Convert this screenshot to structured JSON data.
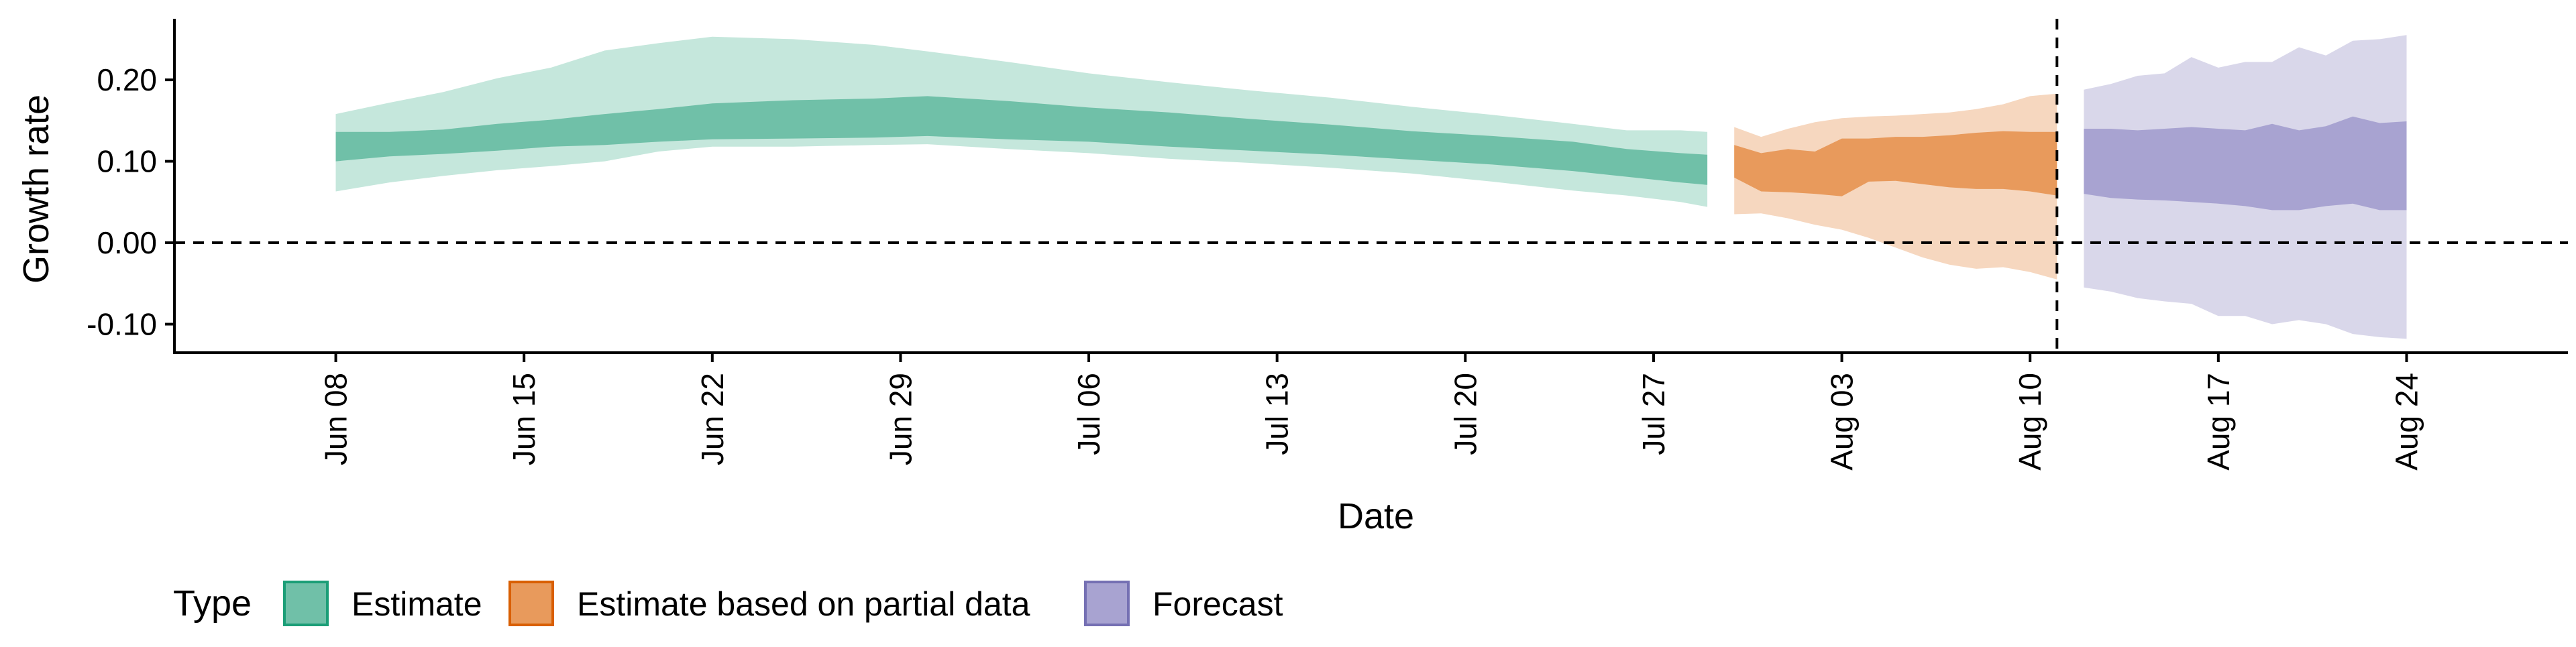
{
  "chart_data": {
    "type": "area",
    "xlabel": "Date",
    "ylabel": "Growth rate",
    "ylim": [
      -0.135,
      0.275
    ],
    "y_ticks": [
      -0.1,
      0.0,
      0.1,
      0.2
    ],
    "y_tick_labels": [
      "-0.10",
      "0.00",
      "0.10",
      "0.20"
    ],
    "x_range": [
      "2020-06-02",
      "2020-08-30"
    ],
    "x_ticks": [
      "2020-06-08",
      "2020-06-15",
      "2020-06-22",
      "2020-06-29",
      "2020-07-06",
      "2020-07-13",
      "2020-07-20",
      "2020-07-27",
      "2020-08-03",
      "2020-08-10",
      "2020-08-17",
      "2020-08-24"
    ],
    "x_tick_labels": [
      "Jun 08",
      "Jun 15",
      "Jun 22",
      "Jun 29",
      "Jul 06",
      "Jul 13",
      "Jul 20",
      "Jul 27",
      "Aug 03",
      "Aug 10",
      "Aug 17",
      "Aug 24"
    ],
    "hline_y": 0.0,
    "vline_x": "2020-08-11",
    "grid": false,
    "legend_position": "bottom",
    "legend": {
      "title": "Type",
      "entries": [
        {
          "label": "Estimate",
          "fill": "#70c0a8",
          "border": "#1b9e77"
        },
        {
          "label": "Estimate based on partial data",
          "fill": "#e89a5c",
          "border": "#d95f02"
        },
        {
          "label": "Forecast",
          "fill": "#a8a3d1",
          "border": "#7570b3"
        }
      ]
    },
    "series": [
      {
        "name": "Estimate",
        "inner_color": "#70c0a8",
        "outer_color": "#c5e7dc",
        "dates": [
          "2020-06-08",
          "2020-06-10",
          "2020-06-12",
          "2020-06-14",
          "2020-06-16",
          "2020-06-18",
          "2020-06-20",
          "2020-06-22",
          "2020-06-25",
          "2020-06-28",
          "2020-06-30",
          "2020-07-03",
          "2020-07-06",
          "2020-07-09",
          "2020-07-12",
          "2020-07-15",
          "2020-07-18",
          "2020-07-21",
          "2020-07-24",
          "2020-07-26",
          "2020-07-28",
          "2020-07-29"
        ],
        "outer_upper": [
          0.158,
          0.172,
          0.185,
          0.202,
          0.215,
          0.236,
          0.245,
          0.253,
          0.25,
          0.243,
          0.235,
          0.222,
          0.208,
          0.197,
          0.187,
          0.178,
          0.167,
          0.157,
          0.146,
          0.138,
          0.138,
          0.136
        ],
        "inner_upper": [
          0.136,
          0.136,
          0.139,
          0.146,
          0.151,
          0.158,
          0.164,
          0.171,
          0.175,
          0.177,
          0.18,
          0.174,
          0.166,
          0.16,
          0.152,
          0.145,
          0.137,
          0.131,
          0.124,
          0.115,
          0.11,
          0.108
        ],
        "inner_lower": [
          0.1,
          0.106,
          0.109,
          0.113,
          0.118,
          0.12,
          0.124,
          0.127,
          0.128,
          0.129,
          0.131,
          0.127,
          0.124,
          0.118,
          0.113,
          0.108,
          0.102,
          0.096,
          0.088,
          0.081,
          0.074,
          0.071
        ],
        "outer_lower": [
          0.063,
          0.074,
          0.082,
          0.089,
          0.094,
          0.1,
          0.112,
          0.118,
          0.118,
          0.12,
          0.121,
          0.115,
          0.11,
          0.103,
          0.098,
          0.092,
          0.085,
          0.075,
          0.064,
          0.058,
          0.05,
          0.044
        ]
      },
      {
        "name": "Estimate based on partial data",
        "inner_color": "#e89a5c",
        "outer_color": "#f6d7bf",
        "dates": [
          "2020-07-30",
          "2020-07-31",
          "2020-08-01",
          "2020-08-02",
          "2020-08-03",
          "2020-08-04",
          "2020-08-05",
          "2020-08-06",
          "2020-08-07",
          "2020-08-08",
          "2020-08-09",
          "2020-08-10",
          "2020-08-11"
        ],
        "outer_upper": [
          0.142,
          0.13,
          0.14,
          0.148,
          0.153,
          0.155,
          0.156,
          0.158,
          0.16,
          0.164,
          0.17,
          0.18,
          0.183
        ],
        "inner_upper": [
          0.12,
          0.11,
          0.115,
          0.112,
          0.128,
          0.128,
          0.13,
          0.13,
          0.132,
          0.135,
          0.137,
          0.136,
          0.136
        ],
        "inner_lower": [
          0.08,
          0.063,
          0.062,
          0.06,
          0.057,
          0.075,
          0.076,
          0.072,
          0.068,
          0.066,
          0.066,
          0.063,
          0.058
        ],
        "outer_lower": [
          0.035,
          0.036,
          0.03,
          0.022,
          0.016,
          0.006,
          -0.006,
          -0.018,
          -0.027,
          -0.032,
          -0.03,
          -0.036,
          -0.045
        ]
      },
      {
        "name": "Forecast",
        "inner_color": "#a8a3d1",
        "outer_color": "#d9d7ea",
        "dates": [
          "2020-08-12",
          "2020-08-13",
          "2020-08-14",
          "2020-08-15",
          "2020-08-16",
          "2020-08-17",
          "2020-08-18",
          "2020-08-19",
          "2020-08-20",
          "2020-08-21",
          "2020-08-22",
          "2020-08-23",
          "2020-08-24"
        ],
        "outer_upper": [
          0.188,
          0.195,
          0.205,
          0.208,
          0.228,
          0.215,
          0.222,
          0.222,
          0.24,
          0.23,
          0.248,
          0.25,
          0.255
        ],
        "inner_upper": [
          0.14,
          0.14,
          0.138,
          0.14,
          0.142,
          0.14,
          0.138,
          0.146,
          0.138,
          0.143,
          0.155,
          0.147,
          0.149
        ],
        "inner_lower": [
          0.06,
          0.055,
          0.053,
          0.052,
          0.05,
          0.048,
          0.045,
          0.04,
          0.04,
          0.045,
          0.048,
          0.04,
          0.04
        ],
        "outer_lower": [
          -0.055,
          -0.06,
          -0.068,
          -0.072,
          -0.075,
          -0.09,
          -0.09,
          -0.1,
          -0.095,
          -0.1,
          -0.112,
          -0.116,
          -0.118
        ]
      }
    ]
  }
}
